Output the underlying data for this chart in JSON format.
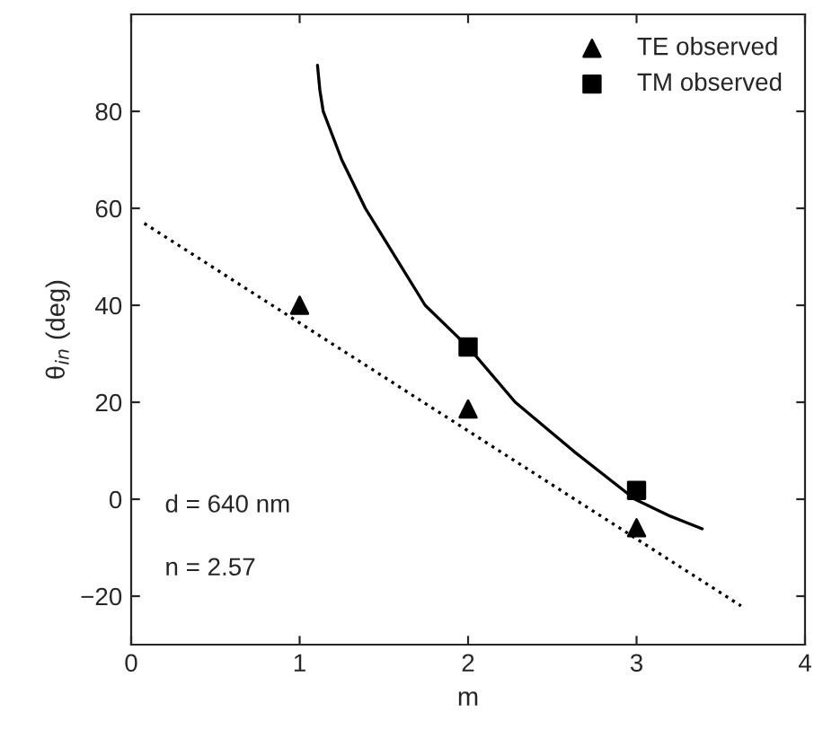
{
  "chart_data": {
    "type": "line",
    "xlabel": "m",
    "ylabel": "θ$_{in}$ (deg)",
    "xlim": [
      0,
      4
    ],
    "ylim": [
      -30,
      100
    ],
    "xticks": [
      0,
      1,
      2,
      3,
      4
    ],
    "yticks": [
      -20,
      0,
      20,
      40,
      60,
      80
    ],
    "grid": false,
    "legend": "top right",
    "series": [
      {
        "type": "scatter",
        "name": "TE observed",
        "color": "#000000",
        "marker": "triangle",
        "x": [
          1,
          2,
          3
        ],
        "values": [
          40,
          18.6,
          -5.9
        ]
      },
      {
        "type": "scatter",
        "name": "TM observed",
        "color": "#000000",
        "marker": "square",
        "x": [
          2,
          3
        ],
        "values": [
          31.4,
          1.8
        ]
      },
      {
        "color": "#000000",
        "line_style": "solid",
        "x": [
          1.106,
          1.12,
          1.14,
          1.25,
          1.39,
          1.745,
          2.0,
          2.28,
          2.63,
          2.99,
          3.2,
          3.39
        ],
        "values": [
          89.5,
          84.4,
          80,
          70,
          60,
          40,
          31.4,
          20,
          9.8,
          0,
          -3.5,
          -6.1
        ]
      },
      {
        "color": "#000000",
        "line_style": "dotted",
        "x": [
          0.078,
          3.62
        ],
        "values": [
          56.9,
          -22
        ]
      }
    ],
    "annotations": [
      "d = 640 nm",
      "n = 2.57"
    ]
  }
}
